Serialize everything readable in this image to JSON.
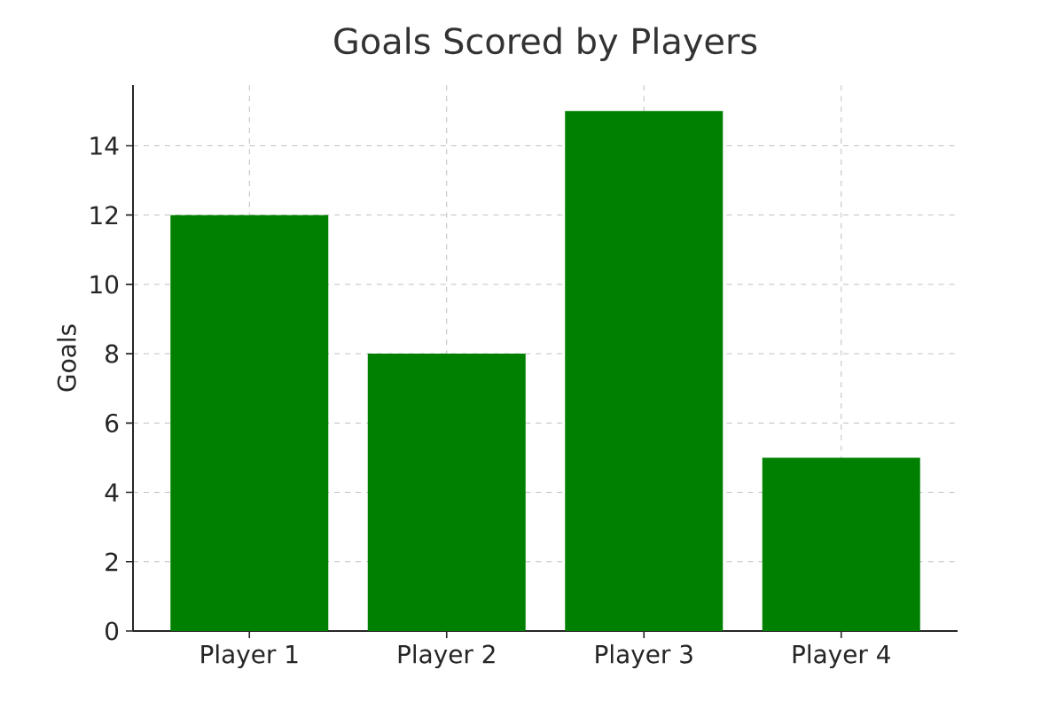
{
  "chart_data": {
    "type": "bar",
    "title": "Goals Scored by Players",
    "ylabel": "Goals",
    "categories": [
      "Player 1",
      "Player 2",
      "Player 3",
      "Player 4"
    ],
    "values": [
      12,
      8,
      15,
      5
    ],
    "color": "#008000",
    "ylim": [
      0,
      15.75
    ],
    "yticks": [
      0,
      2,
      4,
      6,
      8,
      10,
      12,
      14
    ],
    "grid": true
  }
}
